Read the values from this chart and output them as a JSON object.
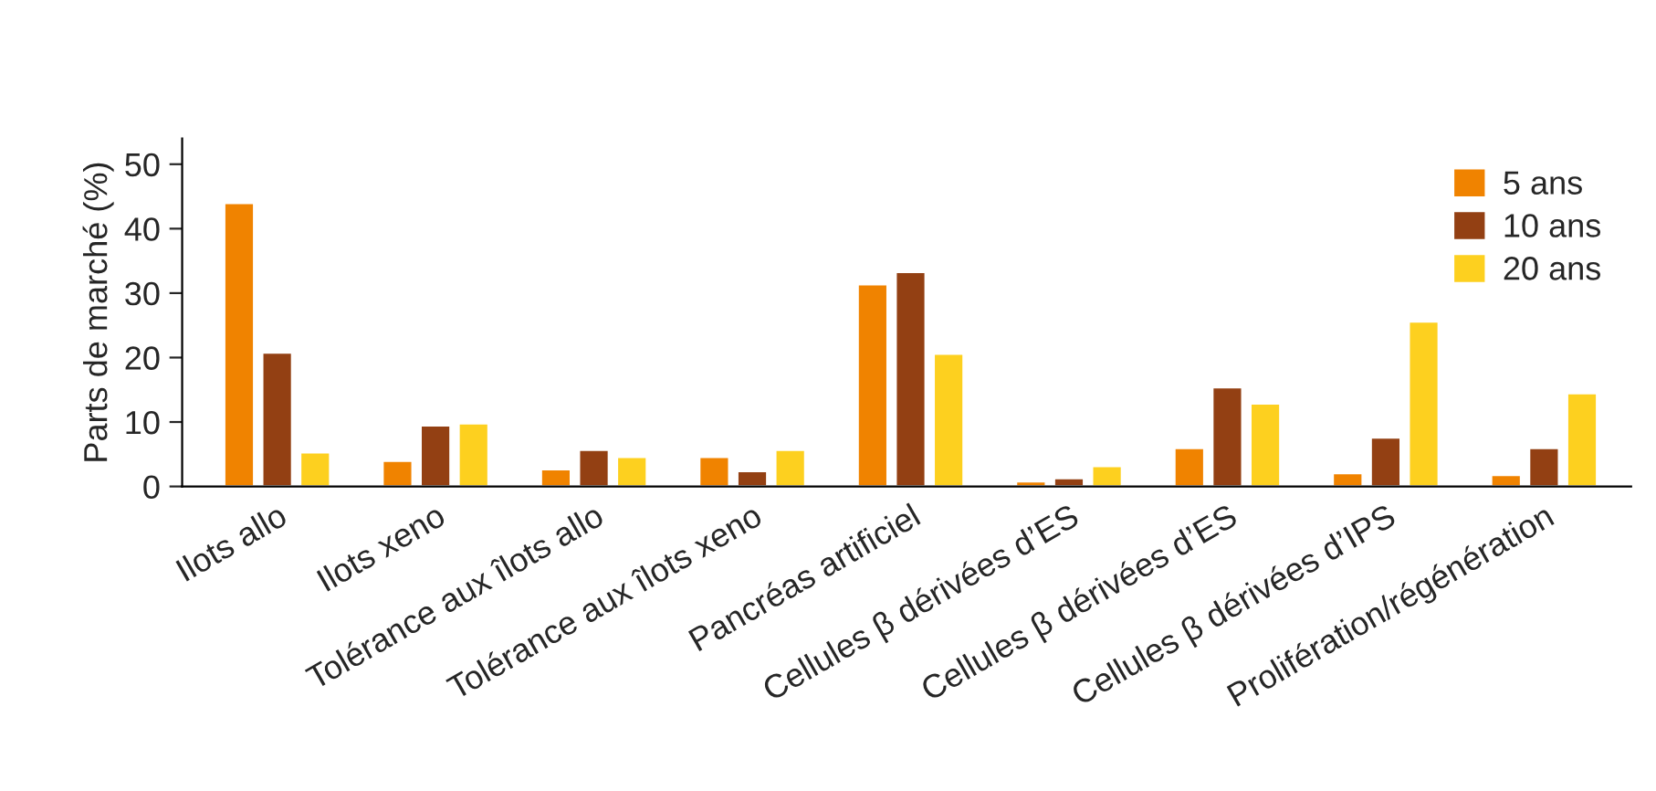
{
  "chart_data": {
    "type": "bar",
    "ylabel": "Parts de marché (%)",
    "categories": [
      "Ilots allo",
      "Ilots xeno",
      "Tolérance aux îlots allo",
      "Tolérance aux îlots xeno",
      "Pancréas artificiel",
      "Cellules β dérivées d’ES",
      "Cellules β dérivées d’ES",
      "Cellules β dérivées d’IPS",
      "Prolifération/régénération"
    ],
    "series": [
      {
        "name": "5 ans",
        "color": "#f08300",
        "values": [
          44,
          4.0,
          2.7,
          4.6,
          31.4,
          0.8,
          6.0,
          2.1,
          1.8
        ]
      },
      {
        "name": "10 ans",
        "color": "#934013",
        "values": [
          20.8,
          9.5,
          5.7,
          2.4,
          33.3,
          1.3,
          15.4,
          7.6,
          6.0
        ]
      },
      {
        "name": "20 ans",
        "color": "#fdd01f",
        "values": [
          5.3,
          9.8,
          4.6,
          5.7,
          20.6,
          3.2,
          12.9,
          25.6,
          14.5
        ]
      }
    ],
    "ylim": [
      0,
      54
    ],
    "yticks": [
      0,
      10,
      20,
      30,
      40,
      50
    ],
    "grid": false,
    "legend": "top right"
  }
}
